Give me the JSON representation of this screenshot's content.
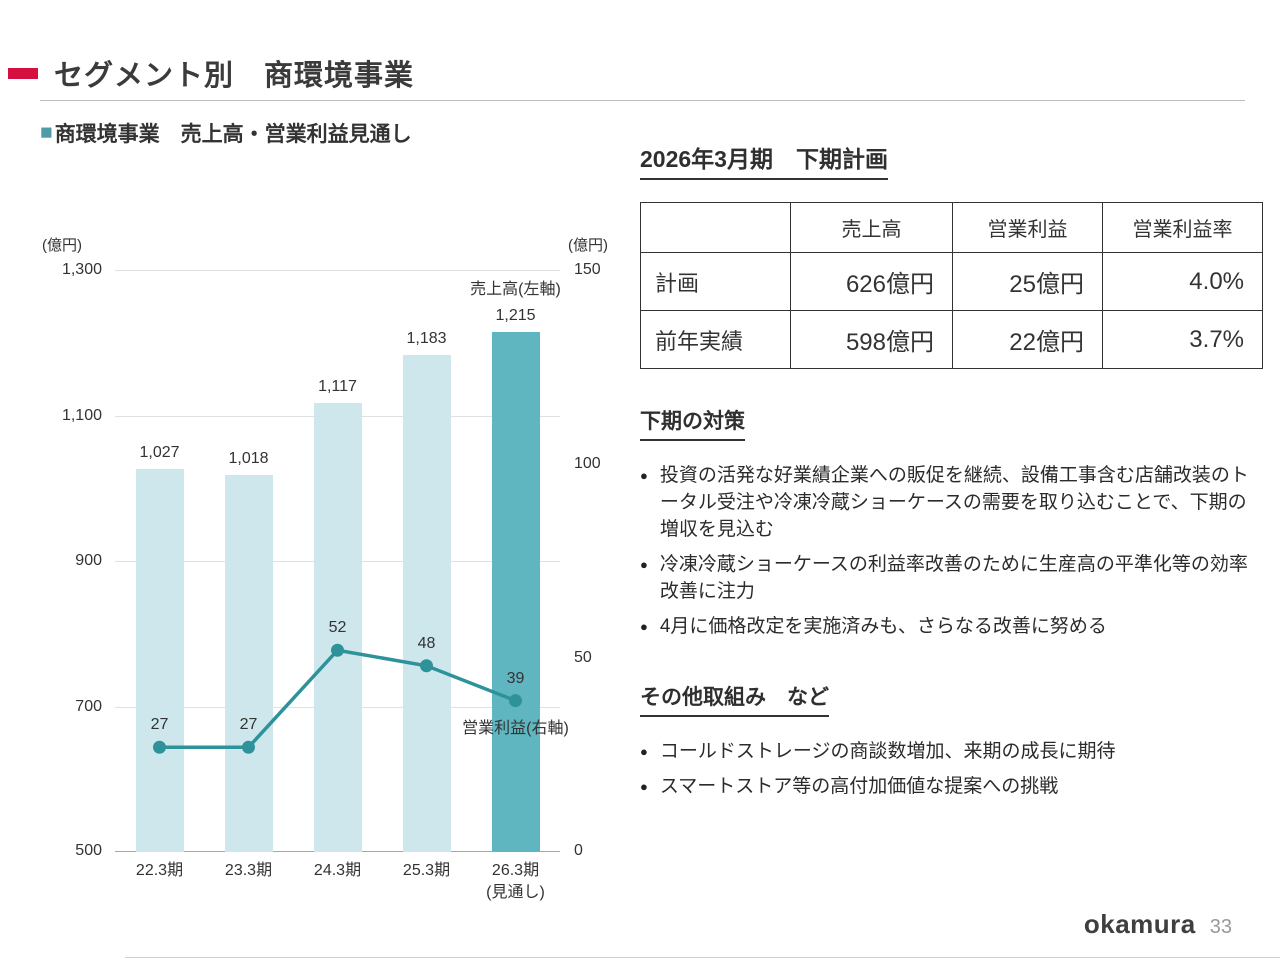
{
  "slide": {
    "title": "セグメント別　商環境事業",
    "logo": "okamura",
    "page_number": "33"
  },
  "icons": {
    "square_glyph": "■"
  },
  "colors": {
    "accent_red": "#d50f3f",
    "teal_square": "#4d9ca6",
    "bar_light": "#cde7ec",
    "bar_dark": "#5fb6c1",
    "line": "#2e929b"
  },
  "chart_section": {
    "heading": "商環境事業　売上高・営業利益見通し",
    "left_axis_unit": "(億円)",
    "right_axis_unit": "(億円)"
  },
  "chart_data": {
    "type": "bar",
    "subtype": "bar+line combo, dual axis",
    "categories": [
      "22.3期",
      "23.3期",
      "24.3期",
      "25.3期",
      "26.3期\n(見通し)"
    ],
    "series": [
      {
        "name": "売上高(左軸)",
        "type": "bar",
        "axis": "left",
        "values": [
          1027,
          1018,
          1117,
          1183,
          1215
        ]
      },
      {
        "name": "営業利益(右軸)",
        "type": "line",
        "axis": "right",
        "values": [
          27,
          27,
          52,
          48,
          39
        ]
      }
    ],
    "left_axis": {
      "min": 500,
      "max": 1300,
      "ticks": [
        1300,
        1100,
        900,
        700,
        500
      ],
      "unit": "億円"
    },
    "right_axis": {
      "min": 0,
      "max": 150,
      "ticks": [
        150,
        100,
        50,
        0
      ],
      "unit": "億円"
    },
    "grid": true,
    "legend_position": "inline-labels"
  },
  "plan": {
    "heading": "2026年3月期　下期計画",
    "table": {
      "headers": [
        "",
        "売上高",
        "営業利益",
        "営業利益率"
      ],
      "rows": [
        {
          "label": "計画",
          "values": [
            "626億円",
            "25億円",
            "4.0%"
          ]
        },
        {
          "label": "前年実績",
          "values": [
            "598億円",
            "22億円",
            "3.7%"
          ]
        }
      ]
    }
  },
  "measures": {
    "heading": "下期の対策",
    "bullets": [
      "投資の活発な好業績企業への販促を継続、設備工事含む店舗改装のトータル受注や冷凍冷蔵ショーケースの需要を取り込むことで、下期の増収を見込む",
      "冷凍冷蔵ショーケースの利益率改善のために生産高の平準化等の効率改善に注力",
      "4月に価格改定を実施済みも、さらなる改善に努める"
    ]
  },
  "other": {
    "heading": "その他取組み　など",
    "bullets": [
      "コールドストレージの商談数増加、来期の成長に期待",
      "スマートストア等の高付加価値な提案への挑戦"
    ]
  }
}
